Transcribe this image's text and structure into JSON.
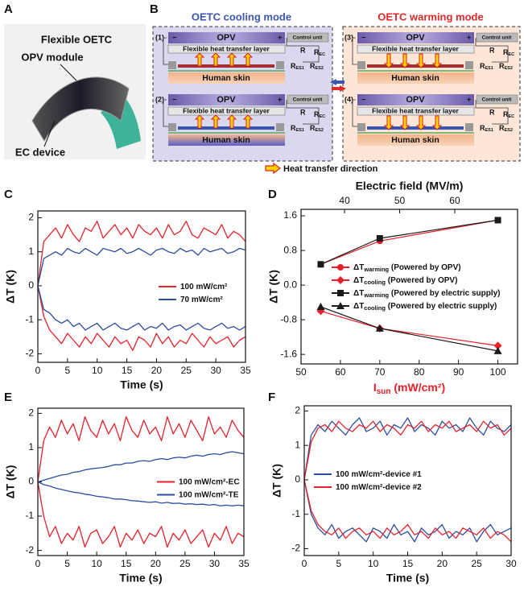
{
  "photo": {
    "label": "A",
    "title": "Flexible OETC",
    "opv": "OPV module",
    "ec": "EC device"
  },
  "diagram": {
    "label": "B",
    "cooling_title": "OETC cooling mode",
    "warming_title": "OETC warming mode",
    "cells": [
      "(1)",
      "(2)",
      "(3)",
      "(4)"
    ],
    "opv": "OPV",
    "minus": "−",
    "plus": "+",
    "heat_layer": "Flexible heat transfer layer",
    "skin": "Human skin",
    "control": "Control unit",
    "r": "R",
    "r_ec": [
      "R",
      "EC"
    ],
    "r_es1": [
      "R",
      "ES1"
    ],
    "r_es2": [
      "R",
      "ES2"
    ],
    "legend": "Heat transfer direction"
  },
  "chart_data": [
    {
      "type": "line",
      "panel": "C",
      "xlabel": "Time (s)",
      "ylabel": "ΔT (K)",
      "legend": "center right",
      "x": [
        0,
        1,
        2,
        3,
        4,
        5,
        6,
        7,
        8,
        9,
        10,
        11,
        12,
        13,
        14,
        15,
        16,
        17,
        18,
        19,
        20,
        21,
        22,
        23,
        24,
        25,
        26,
        27,
        28,
        29,
        30,
        31,
        32,
        33,
        34,
        35
      ],
      "xlim": [
        0,
        35
      ],
      "xticks": [
        0,
        5,
        10,
        15,
        20,
        25,
        30,
        35
      ],
      "ylim": [
        -2.25,
        2.2
      ],
      "yticks": [
        -2,
        -1,
        0,
        1,
        2
      ],
      "series": [
        {
          "name": "100 mW/cm²",
          "color": "#e8202a",
          "values": [
            0,
            1.3,
            1.5,
            1.7,
            1.4,
            1.8,
            1.5,
            1.3,
            1.7,
            1.6,
            1.9,
            1.4,
            1.6,
            1.8,
            1.5,
            1.7,
            1.4,
            1.8,
            1.6,
            1.5,
            1.7,
            1.4,
            1.8,
            1.5,
            1.6,
            1.9,
            1.5,
            1.4,
            1.7,
            1.6,
            1.5,
            1.8,
            1.4,
            1.6,
            1.5,
            1.3
          ],
          "values_negative": [
            0,
            -0.9,
            -1.3,
            -1.5,
            -1.7,
            -1.4,
            -1.6,
            -1.8,
            -1.5,
            -1.7,
            -1.4,
            -1.6,
            -1.8,
            -1.5,
            -1.7,
            -1.6,
            -1.9,
            -1.5,
            -1.6,
            -1.8,
            -1.4,
            -1.7,
            -1.5,
            -1.8,
            -1.6,
            -1.7,
            -1.4,
            -1.6,
            -1.8,
            -1.5,
            -1.7,
            -1.6,
            -1.5,
            -1.8,
            -1.6,
            -1.5
          ]
        },
        {
          "name": "70 mW/cm²",
          "color": "#2b4ea2",
          "values": [
            0,
            0.8,
            0.9,
            1.0,
            0.9,
            1.1,
            1.0,
            0.95,
            1.1,
            1.0,
            0.9,
            1.1,
            1.05,
            1.0,
            1.1,
            0.95,
            1.0,
            1.1,
            1.0,
            0.9,
            1.05,
            1.1,
            1.0,
            0.95,
            1.1,
            1.0,
            1.05,
            0.9,
            1.1,
            1.0,
            1.05,
            1.1,
            0.95,
            1.0,
            1.1,
            1.05
          ],
          "values_negative": [
            0,
            -0.7,
            -0.8,
            -1.0,
            -1.1,
            -1.0,
            -1.2,
            -1.1,
            -1.3,
            -1.2,
            -1.1,
            -1.3,
            -1.2,
            -1.1,
            -1.25,
            -1.3,
            -1.2,
            -1.1,
            -1.3,
            -1.2,
            -1.25,
            -1.1,
            -1.3,
            -1.2,
            -1.15,
            -1.3,
            -1.2,
            -1.1,
            -1.25,
            -1.3,
            -1.2,
            -1.1,
            -1.25,
            -1.2,
            -1.3,
            -1.2
          ]
        }
      ]
    },
    {
      "type": "line",
      "panel": "D",
      "xlabel": {
        "main": "I",
        "sub": "sun",
        "rest": " (mW/cm²)"
      },
      "xlabel_color": "#e8202a",
      "x2label": "Electric field (MV/m)",
      "ylabel": "ΔT (K)",
      "legend": "center",
      "x": [
        55,
        70,
        100
      ],
      "xlim": [
        50,
        105
      ],
      "xticks": [
        50,
        60,
        70,
        80,
        90,
        100
      ],
      "x2lim": [
        32.1,
        71.4
      ],
      "x2ticks": [
        40,
        50,
        60
      ],
      "ylim": [
        -1.82,
        1.75
      ],
      "yticks": [
        -1.6,
        -0.8,
        {
          "value": 0,
          "label": "0.0"
        },
        0.8,
        1.6
      ],
      "series": [
        {
          "name": "ΔT",
          "name_sub": "warming",
          "name_note": " (Powered by OPV)",
          "color": "#e8202a",
          "marker": "circle",
          "values": [
            0.48,
            1.02,
            1.5
          ]
        },
        {
          "name": "ΔT",
          "name_sub": "cooling",
          "name_note": " (Powered by OPV)",
          "color": "#e8202a",
          "marker": "diamond",
          "values": [
            -0.6,
            -1.0,
            -1.4
          ]
        },
        {
          "name": "ΔT",
          "name_sub": "warming",
          "name_note": " (Powered by electric supply)",
          "color": "#1a1a1a",
          "marker": "square",
          "values": [
            0.48,
            1.08,
            1.5
          ]
        },
        {
          "name": "ΔT",
          "name_sub": "cooling",
          "name_note": " (Powered by electric supply)",
          "color": "#1a1a1a",
          "marker": "triangle",
          "values": [
            -0.5,
            -1.0,
            -1.52
          ]
        }
      ]
    },
    {
      "type": "line",
      "panel": "E",
      "xlabel": "Time (s)",
      "ylabel": "ΔT (K)",
      "legend": "center right",
      "x": [
        0,
        1,
        2,
        3,
        4,
        5,
        6,
        7,
        8,
        9,
        10,
        11,
        12,
        13,
        14,
        15,
        16,
        17,
        18,
        19,
        20,
        21,
        22,
        23,
        24,
        25,
        26,
        27,
        28,
        29,
        30,
        31,
        32,
        33,
        34,
        35
      ],
      "xlim": [
        0,
        35
      ],
      "xticks": [
        0,
        5,
        10,
        15,
        20,
        25,
        30,
        35
      ],
      "ylim": [
        -2.15,
        2.15
      ],
      "yticks": [
        -2,
        -1,
        0,
        1,
        2
      ],
      "series": [
        {
          "name": "100 mW/cm²-EC",
          "color": "#e8202a",
          "values": [
            0,
            1.2,
            1.6,
            1.3,
            1.8,
            1.4,
            1.7,
            1.2,
            1.9,
            1.5,
            1.3,
            1.8,
            1.4,
            1.7,
            1.2,
            1.9,
            1.5,
            1.3,
            1.8,
            1.4,
            1.6,
            1.2,
            1.9,
            1.4,
            1.7,
            1.3,
            1.8,
            1.5,
            1.2,
            1.9,
            1.4,
            1.6,
            1.3,
            1.8,
            1.5,
            1.3
          ],
          "values_negative": [
            0,
            -1.0,
            -1.6,
            -1.3,
            -1.8,
            -1.5,
            -1.7,
            -1.3,
            -1.9,
            -1.5,
            -1.4,
            -1.8,
            -1.6,
            -1.3,
            -1.9,
            -1.5,
            -1.7,
            -1.4,
            -1.8,
            -1.5,
            -1.6,
            -1.3,
            -1.9,
            -1.5,
            -1.7,
            -1.4,
            -1.8,
            -1.6,
            -1.4,
            -1.9,
            -1.5,
            -1.7,
            -1.3,
            -1.8,
            -1.5,
            -1.6
          ]
        },
        {
          "name": "100 mW/cm²-TE",
          "color": "#2b4ea2",
          "values": [
            0,
            0.05,
            0.1,
            0.15,
            0.2,
            0.22,
            0.28,
            0.3,
            0.35,
            0.38,
            0.4,
            0.42,
            0.45,
            0.5,
            0.5,
            0.55,
            0.55,
            0.6,
            0.62,
            0.6,
            0.65,
            0.68,
            0.65,
            0.7,
            0.72,
            0.7,
            0.75,
            0.78,
            0.75,
            0.8,
            0.82,
            0.8,
            0.85,
            0.88,
            0.85,
            0.82
          ],
          "values_negative": [
            0,
            -0.08,
            -0.12,
            -0.18,
            -0.22,
            -0.26,
            -0.3,
            -0.32,
            -0.36,
            -0.38,
            -0.42,
            -0.44,
            -0.46,
            -0.5,
            -0.5,
            -0.52,
            -0.55,
            -0.56,
            -0.58,
            -0.6,
            -0.58,
            -0.62,
            -0.6,
            -0.63,
            -0.62,
            -0.65,
            -0.64,
            -0.66,
            -0.65,
            -0.68,
            -0.66,
            -0.7,
            -0.68,
            -0.7,
            -0.68,
            -0.7
          ]
        }
      ]
    },
    {
      "type": "line",
      "panel": "F",
      "xlabel": "Time (s)",
      "ylabel": "ΔT (K)",
      "legend": "center",
      "x": [
        0,
        1,
        2,
        3,
        4,
        5,
        6,
        7,
        8,
        9,
        10,
        11,
        12,
        13,
        14,
        15,
        16,
        17,
        18,
        19,
        20,
        21,
        22,
        23,
        24,
        25,
        26,
        27,
        28,
        29,
        30
      ],
      "xlim": [
        0,
        30
      ],
      "xticks": [
        0,
        5,
        10,
        15,
        20,
        25,
        30
      ],
      "ylim": [
        -2.2,
        2.15
      ],
      "yticks": [
        -2,
        -1,
        0,
        1,
        2
      ],
      "series": [
        {
          "name": "100 mW/cm²-device #1",
          "color": "#2b4ea2",
          "values": [
            0,
            1.3,
            1.6,
            1.4,
            1.7,
            1.5,
            1.3,
            1.6,
            1.8,
            1.4,
            1.5,
            1.7,
            1.3,
            1.6,
            1.5,
            1.8,
            1.4,
            1.6,
            1.5,
            1.3,
            1.7,
            1.5,
            1.6,
            1.4,
            1.8,
            1.5,
            1.3,
            1.7,
            1.5,
            1.4,
            1.6
          ],
          "values_negative": [
            0,
            -1.0,
            -1.4,
            -1.6,
            -1.3,
            -1.7,
            -1.5,
            -1.4,
            -1.6,
            -1.8,
            -1.4,
            -1.5,
            -1.7,
            -1.3,
            -1.6,
            -1.5,
            -1.8,
            -1.4,
            -1.6,
            -1.5,
            -1.3,
            -1.7,
            -1.5,
            -1.6,
            -1.4,
            -1.8,
            -1.5,
            -1.3,
            -1.6,
            -1.5,
            -1.4
          ]
        },
        {
          "name": "100 mW/cm²-device #2",
          "color": "#e8202a",
          "values": [
            0,
            1.1,
            1.5,
            1.6,
            1.4,
            1.7,
            1.5,
            1.4,
            1.6,
            1.5,
            1.7,
            1.4,
            1.6,
            1.5,
            1.3,
            1.6,
            1.5,
            1.7,
            1.4,
            1.6,
            1.5,
            1.7,
            1.4,
            1.5,
            1.6,
            1.4,
            1.7,
            1.5,
            1.6,
            1.3,
            1.5
          ],
          "values_negative": [
            0,
            -0.9,
            -1.3,
            -1.5,
            -1.6,
            -1.4,
            -1.7,
            -1.5,
            -1.4,
            -1.6,
            -1.5,
            -1.7,
            -1.4,
            -1.6,
            -1.5,
            -1.3,
            -1.6,
            -1.5,
            -1.7,
            -1.4,
            -1.6,
            -1.5,
            -1.7,
            -1.4,
            -1.5,
            -1.6,
            -1.4,
            -1.7,
            -1.5,
            -1.6,
            -1.8
          ]
        }
      ]
    }
  ]
}
